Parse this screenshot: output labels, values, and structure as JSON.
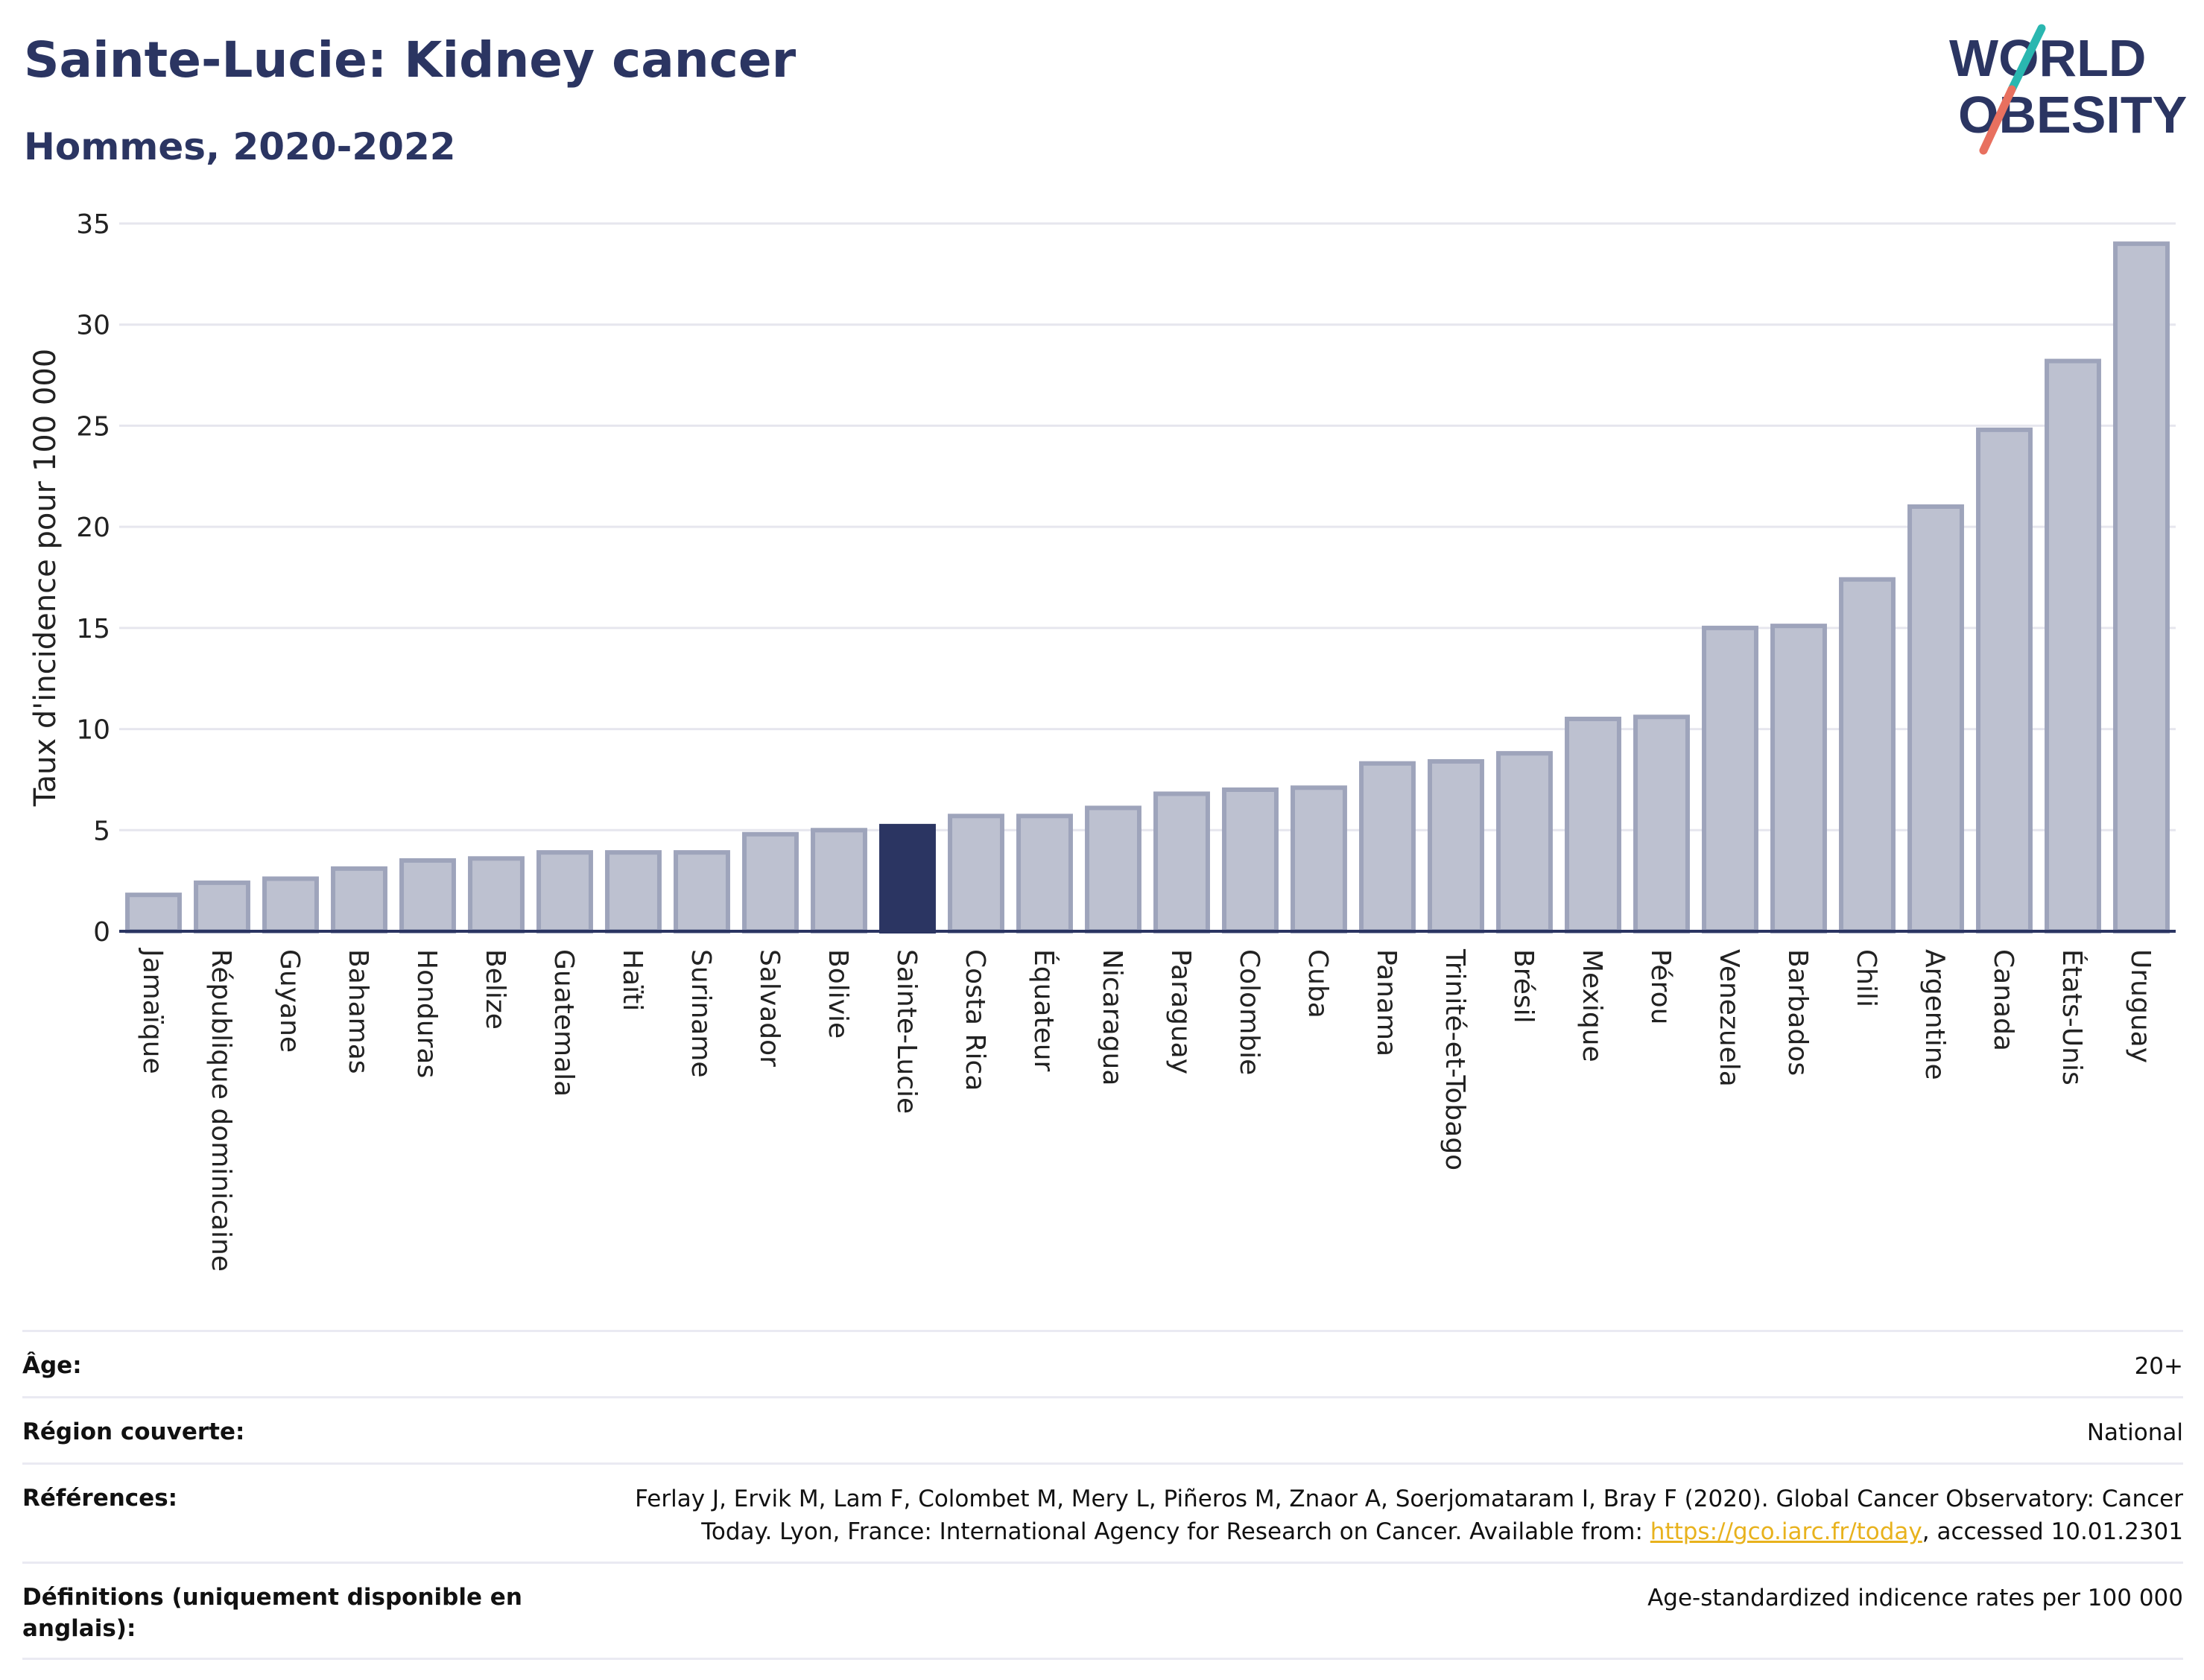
{
  "header": {
    "title": "Sainte-Lucie: Kidney cancer",
    "subtitle": "Hommes, 2020-2022"
  },
  "logo": {
    "line1": "WORLD",
    "line2": "OBESITY",
    "colors": {
      "text": "#2b3562",
      "slash_top": "#2ab7b0",
      "slash_bottom": "#e8705f"
    }
  },
  "chart_data": {
    "type": "bar",
    "ylabel": "Taux d'incidence pour 100 000",
    "ylim": [
      0,
      35
    ],
    "yticks": [
      0,
      5,
      10,
      15,
      20,
      25,
      30,
      35
    ],
    "grid": true,
    "highlight": "Sainte-Lucie",
    "colors": {
      "bar": "#bdc1d0",
      "bar_edge": "#9ea4bb",
      "highlight": "#2b3562",
      "grid": "#e6e6ee",
      "axis": "#2b3562"
    },
    "categories": [
      "Jamaïque",
      "République dominicaine",
      "Guyane",
      "Bahamas",
      "Honduras",
      "Belize",
      "Guatemala",
      "Haïti",
      "Suriname",
      "Salvador",
      "Bolivie",
      "Sainte-Lucie",
      "Costa Rica",
      "Équateur",
      "Nicaragua",
      "Paraguay",
      "Colombie",
      "Cuba",
      "Panama",
      "Trinité-et-Tobago",
      "Brésil",
      "Mexique",
      "Pérou",
      "Venezuela",
      "Barbados",
      "Chili",
      "Argentine",
      "Canada",
      "États-Unis",
      "Uruguay"
    ],
    "values": [
      1.8,
      2.4,
      2.6,
      3.1,
      3.5,
      3.6,
      3.9,
      3.9,
      3.9,
      4.8,
      5.0,
      5.2,
      5.7,
      5.7,
      6.1,
      6.8,
      7.0,
      7.1,
      8.3,
      8.4,
      8.8,
      10.5,
      10.6,
      15.0,
      15.1,
      17.4,
      21.0,
      24.8,
      28.2,
      34.0
    ]
  },
  "meta": {
    "age_label": "Âge:",
    "age_value": "20+",
    "region_label": "Région couverte:",
    "region_value": "National",
    "references_label": "Références:",
    "references_text_1": "Ferlay J, Ervik M, Lam F, Colombet M, Mery L, Piñeros M, Znaor A, Soerjomataram I, Bray F (2020). Global Cancer Observatory: Cancer Today. Lyon, France: International Agency for Research on Cancer. Available from: ",
    "references_link": "https://gco.iarc.fr/today",
    "references_text_2": ", accessed 10.01.2301",
    "definitions_label": "Définitions (uniquement disponible en anglais):",
    "definitions_value": "Age-standardized indicence rates per 100 000"
  }
}
